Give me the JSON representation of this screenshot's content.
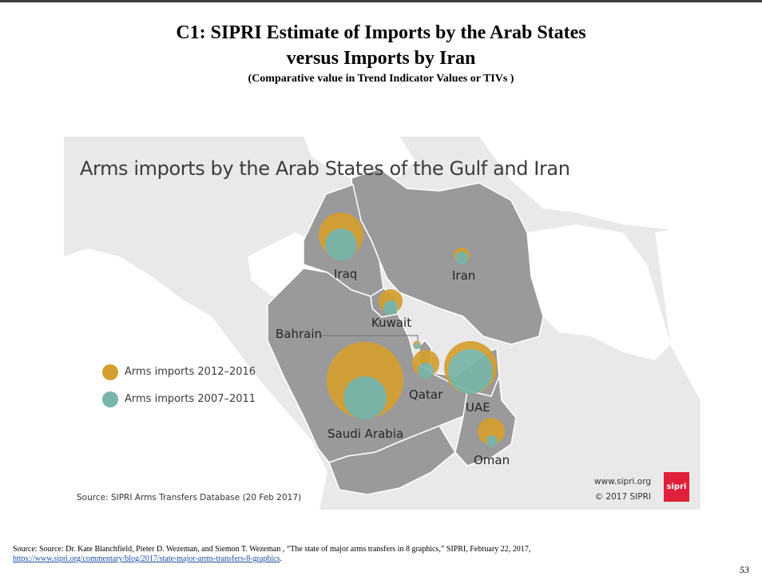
{
  "slide": {
    "title_line1": "C1: SIPRI Estimate of Imports by the Arab States",
    "title_line2": "versus Imports by Iran",
    "subtitle": "(Comparative value in Trend Indicator Values or TIVs )",
    "source_text": "Source: Source: Dr. Kate Blanchfield, Pieter D. Wezeman, and Siemon T. Wezeman , “The state of major arms transfers in 8 graphics,” SIPRI, February 22, 2017,",
    "source_link": "https://www.sipri.org/commentary/blog/2017/state-major-arms-transfers-8-graphics",
    "source_link_suffix": ".",
    "page_number": "53"
  },
  "map": {
    "heading": "Arms imports by the Arab States of the Gulf and Iran",
    "legend": [
      {
        "label": "Arms imports 2012–2016",
        "color": "#d59f2f"
      },
      {
        "label": "Arms imports 2007–2011",
        "color": "#78b6a7"
      }
    ],
    "source": "Source: SIPRI Arms Transfers Database (20 Feb 2017)",
    "website": "www.sipri.org",
    "copyright": "© 2017 SIPRI",
    "logo_text": "sipri",
    "countries": [
      {
        "name": "Iraq",
        "label": "Iraq"
      },
      {
        "name": "Iran",
        "label": "Iran"
      },
      {
        "name": "Kuwait",
        "label": "Kuwait"
      },
      {
        "name": "Bahrain",
        "label": "Bahrain"
      },
      {
        "name": "Qatar",
        "label": "Qatar"
      },
      {
        "name": "UAE",
        "label": "UAE"
      },
      {
        "name": "Saudi Arabia",
        "label": "Saudi Arabia"
      },
      {
        "name": "Oman",
        "label": "Oman"
      }
    ],
    "colors": {
      "background": "#e9e9ea",
      "other_land": "#ffffff",
      "gulf_states": "#9a9a9c",
      "borders": "#ffffff"
    }
  }
}
